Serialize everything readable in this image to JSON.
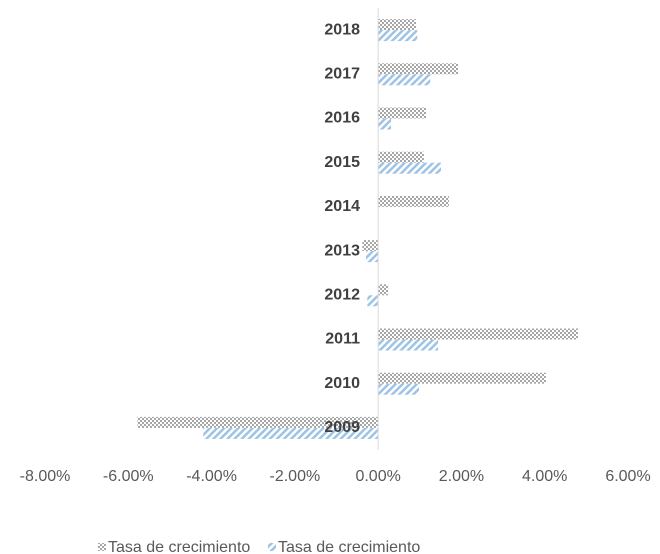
{
  "chart_data": {
    "type": "bar",
    "orientation": "horizontal",
    "categories": [
      "2009",
      "2010",
      "2011",
      "2012",
      "2013",
      "2014",
      "2015",
      "2016",
      "2017",
      "2018"
    ],
    "series": [
      {
        "name": "Tasa de crecimiento",
        "color": "#a6a6a6",
        "values": [
          -5.78,
          4.03,
          4.8,
          0.24,
          -0.38,
          1.7,
          1.1,
          1.15,
          1.92,
          0.91
        ]
      },
      {
        "name": "Tasa de crecimiento",
        "color": "#9dc3e6",
        "values": [
          -4.2,
          0.98,
          1.44,
          -0.26,
          -0.29,
          0,
          1.51,
          0.31,
          1.25,
          0.94
        ]
      }
    ],
    "xlim": [
      -8,
      6
    ],
    "xticks": [
      {
        "value": -8,
        "label": "-8.00%"
      },
      {
        "value": -6,
        "label": "-6.00%"
      },
      {
        "value": -4,
        "label": "-4.00%"
      },
      {
        "value": -2,
        "label": "-2.00%"
      },
      {
        "value": 0,
        "label": "0.00%"
      },
      {
        "value": 2,
        "label": "2.00%"
      },
      {
        "value": 4,
        "label": "4.00%"
      },
      {
        "value": 6,
        "label": "6.00%"
      }
    ],
    "grid": false,
    "legend": "bottom"
  }
}
